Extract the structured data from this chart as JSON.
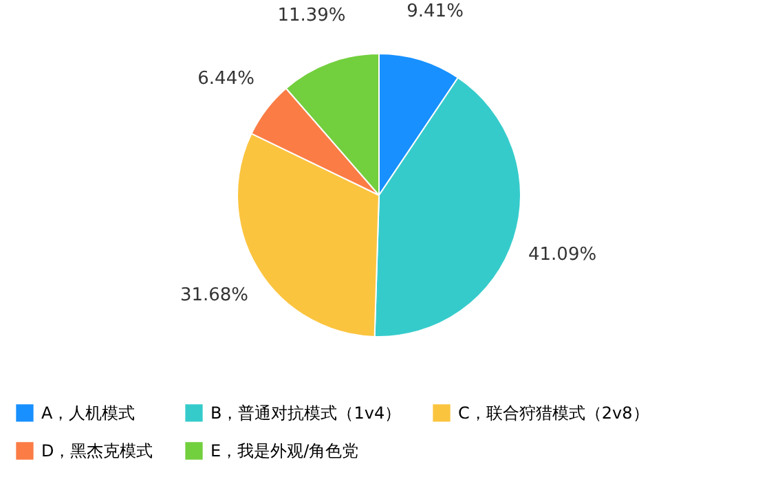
{
  "chart_data": {
    "type": "pie",
    "categories": [
      "A，人机模式",
      "B，普通对抗模式（1v4）",
      "C，联合狩猎模式（2v8）",
      "D，黑杰克模式",
      "E，我是外观/角色党"
    ],
    "values": [
      9.41,
      41.09,
      31.68,
      6.44,
      11.39
    ],
    "value_labels": [
      "9.41%",
      "41.09%",
      "31.68%",
      "6.44%",
      "11.39%"
    ],
    "colors": [
      "#1890ff",
      "#36cbcb",
      "#fbc43f",
      "#fb7c45",
      "#72cf3e"
    ],
    "legend": "bottom"
  }
}
